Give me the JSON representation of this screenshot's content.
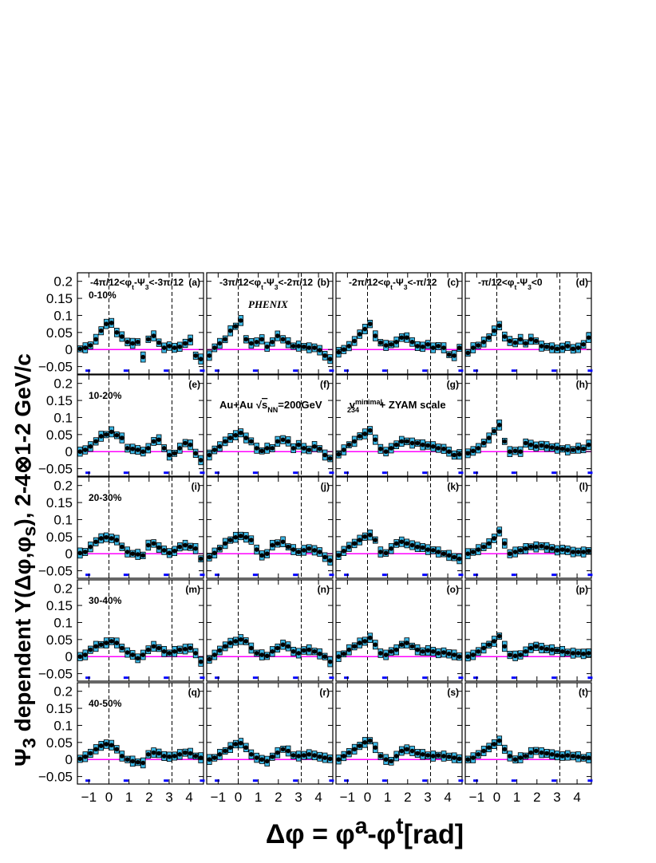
{
  "chart_data": {
    "type": "scatter",
    "figure_label": "PHENIX",
    "ylabel": {
      "prefix": "Ψ",
      "sub": "3",
      "text": " dependent Y(Δφ,φ",
      "sub2": "s",
      "text2": "), 2-4⊗1-2 GeV/c"
    },
    "xlabel": {
      "lead": "Δφ = ",
      "a_base": "φ",
      "a_sup": "a",
      "mid": "-",
      "t_base": "φ",
      "t_sup": "t",
      "unit": "[rad]"
    },
    "x_ticks": [
      "−1",
      "0",
      "1",
      "2",
      "3",
      "4"
    ],
    "x_tick_values": [
      -1,
      0,
      1,
      2,
      3,
      4
    ],
    "y_ticks": [
      "0.2",
      "0.15",
      "0.1",
      "0.05",
      "0",
      "−0.05"
    ],
    "y_tick_values": [
      0.2,
      0.15,
      0.1,
      0.05,
      0,
      -0.05
    ],
    "xlim": [
      -1.571,
      4.712
    ],
    "ylim": [
      -0.072,
      0.225
    ],
    "x": [
      -1.44,
      -1.18,
      -0.92,
      -0.65,
      -0.39,
      -0.13,
      0.13,
      0.39,
      0.65,
      0.92,
      1.18,
      1.44,
      1.7,
      1.96,
      2.23,
      2.49,
      2.75,
      3.01,
      3.27,
      3.53,
      3.8,
      4.06,
      4.32,
      4.58
    ],
    "vlines": [
      0,
      3.14159
    ],
    "zyam_line": 0,
    "row_labels": [
      "0-10%",
      "10-20%",
      "20-30%",
      "30-40%",
      "40-50%"
    ],
    "col_labels": [
      "-4π/12<φ_t-Ψ_3<-3π/12",
      "-3π/12<φ_t-Ψ_3<-2π/12",
      "-2π/12<φ_t-Ψ_3<-π/12",
      "-π/12<φ_t-Ψ_3<0"
    ],
    "annotations": {
      "system": "Au+Au",
      "sqrt_sym": "√",
      "snn_base": "s",
      "snn_sub": "NN",
      "energy": "=200GeV",
      "v_base": "v",
      "v_sub": "234",
      "v_sup": "minimal",
      "zyam": " + ZYAM scale"
    },
    "panels": [
      {
        "id": "(a)",
        "values": [
          0.002,
          0.005,
          0.012,
          0.03,
          0.055,
          0.075,
          0.078,
          0.05,
          0.038,
          0.022,
          0.018,
          0.022,
          -0.022,
          0.03,
          0.04,
          0.02,
          0.005,
          0.01,
          0.005,
          0.008,
          0.018,
          0.028,
          -0.018,
          -0.028
        ]
      },
      {
        "id": "(b)",
        "values": [
          -0.018,
          0.005,
          0.018,
          0.03,
          0.055,
          0.068,
          0.085,
          0.03,
          0.018,
          0.022,
          0.03,
          0.008,
          0.022,
          0.04,
          0.03,
          0.02,
          0.01,
          0.01,
          0.008,
          0.005,
          0.005,
          -0.002,
          -0.018,
          -0.028
        ]
      },
      {
        "id": "(c)",
        "values": [
          -0.008,
          0.0,
          0.01,
          0.025,
          0.045,
          0.06,
          0.075,
          0.04,
          0.02,
          0.012,
          0.015,
          0.022,
          0.035,
          0.035,
          0.022,
          0.01,
          0.008,
          0.015,
          0.005,
          0.01,
          0.005,
          -0.015,
          -0.018,
          0.005
        ]
      },
      {
        "id": "(d)",
        "values": [
          -0.01,
          0.005,
          0.012,
          0.022,
          0.035,
          0.055,
          0.07,
          0.038,
          0.025,
          0.02,
          0.03,
          0.018,
          0.03,
          0.025,
          0.01,
          0.008,
          0.005,
          0.002,
          0.005,
          0.01,
          0.002,
          0.005,
          0.015,
          0.035
        ]
      },
      {
        "id": "(e)",
        "values": [
          0.0,
          0.005,
          0.015,
          0.03,
          0.045,
          0.05,
          0.058,
          0.048,
          0.04,
          0.01,
          0.008,
          0.005,
          0.0,
          0.01,
          0.03,
          0.035,
          0.01,
          -0.01,
          -0.005,
          0.01,
          0.025,
          0.02,
          -0.005,
          -0.025
        ]
      },
      {
        "id": "(f)",
        "values": [
          -0.01,
          0.005,
          0.015,
          0.03,
          0.04,
          0.048,
          0.055,
          0.04,
          0.03,
          0.01,
          0.002,
          0.01,
          0.01,
          0.03,
          0.035,
          0.03,
          0.01,
          0.02,
          0.01,
          0.005,
          0.015,
          0.008,
          -0.01,
          -0.02
        ]
      },
      {
        "id": "(g)",
        "values": [
          -0.008,
          0.005,
          0.02,
          0.03,
          0.045,
          0.052,
          0.062,
          0.035,
          0.008,
          0.0,
          0.01,
          0.02,
          0.03,
          0.03,
          0.025,
          0.025,
          0.02,
          0.018,
          0.015,
          0.01,
          0.008,
          0.0,
          -0.01,
          -0.008
        ]
      },
      {
        "id": "(h)",
        "values": [
          -0.005,
          0.002,
          0.01,
          0.025,
          0.04,
          0.06,
          0.078,
          0.03,
          0.0,
          0.002,
          0.0,
          0.025,
          0.02,
          0.015,
          0.018,
          0.015,
          0.012,
          0.01,
          0.008,
          0.005,
          0.005,
          0.01,
          0.008,
          0.02
        ]
      },
      {
        "id": "(i)",
        "values": [
          0.002,
          0.005,
          0.02,
          0.035,
          0.045,
          0.048,
          0.045,
          0.04,
          0.02,
          0.005,
          0.0,
          -0.002,
          -0.005,
          0.025,
          0.03,
          0.018,
          0.01,
          0.002,
          0.008,
          0.02,
          0.025,
          0.02,
          0.015,
          -0.015
        ]
      },
      {
        "id": "(j)",
        "values": [
          -0.01,
          0.002,
          0.015,
          0.03,
          0.04,
          0.048,
          0.052,
          0.048,
          0.04,
          0.012,
          -0.005,
          0.0,
          0.025,
          0.03,
          0.035,
          0.02,
          0.012,
          0.005,
          0.01,
          0.015,
          0.01,
          0.005,
          -0.01,
          -0.02
        ]
      },
      {
        "id": "(k)",
        "values": [
          -0.005,
          0.008,
          0.02,
          0.03,
          0.04,
          0.05,
          0.055,
          0.04,
          0.005,
          0.002,
          0.015,
          0.03,
          0.035,
          0.03,
          0.025,
          0.02,
          0.018,
          0.012,
          0.01,
          0.005,
          0.0,
          -0.005,
          -0.01,
          -0.015
        ]
      },
      {
        "id": "(l)",
        "values": [
          0.0,
          0.005,
          0.012,
          0.02,
          0.03,
          0.045,
          0.065,
          0.03,
          0.0,
          0.005,
          0.01,
          0.015,
          0.02,
          0.02,
          0.022,
          0.018,
          0.015,
          0.01,
          0.012,
          0.01,
          0.005,
          0.005,
          0.005,
          0.008
        ]
      },
      {
        "id": "(m)",
        "values": [
          0.0,
          0.005,
          0.02,
          0.03,
          0.035,
          0.04,
          0.045,
          0.04,
          0.025,
          0.012,
          0.005,
          -0.005,
          0.005,
          0.02,
          0.03,
          0.025,
          0.015,
          0.01,
          0.015,
          0.02,
          0.022,
          0.025,
          0.01,
          -0.015
        ]
      },
      {
        "id": "(n)",
        "values": [
          -0.008,
          0.005,
          0.018,
          0.03,
          0.04,
          0.045,
          0.05,
          0.045,
          0.025,
          0.01,
          0.005,
          0.002,
          0.015,
          0.025,
          0.035,
          0.03,
          0.015,
          0.01,
          0.018,
          0.02,
          0.015,
          0.008,
          0.0,
          -0.015
        ]
      },
      {
        "id": "(o)",
        "values": [
          0.0,
          0.008,
          0.02,
          0.03,
          0.04,
          0.045,
          0.055,
          0.035,
          0.01,
          0.005,
          0.015,
          0.02,
          0.035,
          0.04,
          0.03,
          0.02,
          0.015,
          0.018,
          0.015,
          0.01,
          0.012,
          0.008,
          0.005,
          0.0
        ]
      },
      {
        "id": "(p)",
        "values": [
          0.0,
          0.005,
          0.015,
          0.025,
          0.035,
          0.045,
          0.06,
          0.03,
          0.005,
          0.002,
          0.005,
          0.015,
          0.025,
          0.03,
          0.025,
          0.022,
          0.02,
          0.018,
          0.015,
          0.012,
          0.01,
          0.01,
          0.008,
          0.01
        ]
      },
      {
        "id": "(q)",
        "values": [
          0.002,
          0.008,
          0.018,
          0.03,
          0.04,
          0.045,
          0.042,
          0.03,
          0.01,
          0.0,
          -0.005,
          -0.008,
          -0.01,
          0.015,
          0.02,
          0.018,
          0.01,
          0.008,
          0.01,
          0.015,
          0.02,
          0.018,
          0.01,
          0.005
        ]
      },
      {
        "id": "(r)",
        "values": [
          0.0,
          0.005,
          0.015,
          0.025,
          0.035,
          0.045,
          0.048,
          0.035,
          0.015,
          0.005,
          0.0,
          -0.005,
          0.008,
          0.02,
          0.03,
          0.025,
          0.012,
          0.01,
          0.012,
          0.015,
          0.012,
          0.008,
          0.005,
          0.002
        ]
      },
      {
        "id": "(s)",
        "values": [
          0.0,
          0.01,
          0.02,
          0.03,
          0.04,
          0.05,
          0.055,
          0.035,
          0.01,
          0.0,
          -0.005,
          0.01,
          0.025,
          0.03,
          0.025,
          0.018,
          0.015,
          0.012,
          0.01,
          0.012,
          0.01,
          0.008,
          0.005,
          0.002
        ]
      },
      {
        "id": "(t)",
        "values": [
          0.0,
          0.005,
          0.015,
          0.025,
          0.035,
          0.045,
          0.055,
          0.03,
          0.01,
          0.0,
          0.005,
          0.01,
          0.02,
          0.025,
          0.02,
          0.018,
          0.015,
          0.012,
          0.01,
          0.012,
          0.01,
          0.008,
          0.005,
          0.005
        ]
      }
    ],
    "colors": {
      "box": "#3cb8e6",
      "point": "#000000",
      "zyam": "#ff00ff",
      "marker": "#0000ff",
      "frame": "#000000"
    }
  }
}
